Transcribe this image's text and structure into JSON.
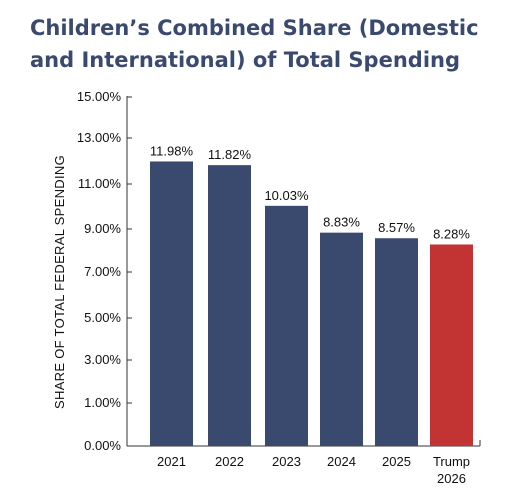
{
  "chart_data": {
    "type": "bar",
    "title": "Children’s Combined Share (Domestic and International) of Total Spending",
    "ylabel": "SHARE OF TOTAL  FEDERAL SPENDING",
    "xlabel": "",
    "ylim": [
      0,
      15
    ],
    "yticks": [
      0,
      1,
      3,
      5,
      7,
      9,
      11,
      13,
      15
    ],
    "ytick_labels": [
      "0.00%",
      "1.00%",
      "3.00%",
      "5.00%",
      "7.00%",
      "9.00%",
      "11.00%",
      "13.00%",
      "15.00%"
    ],
    "categories": [
      "2021",
      "2022",
      "2023",
      "2024",
      "2025",
      "Trump\n2026"
    ],
    "values": [
      11.98,
      11.82,
      10.03,
      8.83,
      8.57,
      8.28
    ],
    "data_labels": [
      "11.98%",
      "11.82%",
      "10.03%",
      "8.83%",
      "8.57%",
      "8.28%"
    ],
    "bar_colors": [
      "#3a4a6e",
      "#3a4a6e",
      "#3a4a6e",
      "#3a4a6e",
      "#3a4a6e",
      "#c23434"
    ],
    "grid": false,
    "legend": "none"
  }
}
